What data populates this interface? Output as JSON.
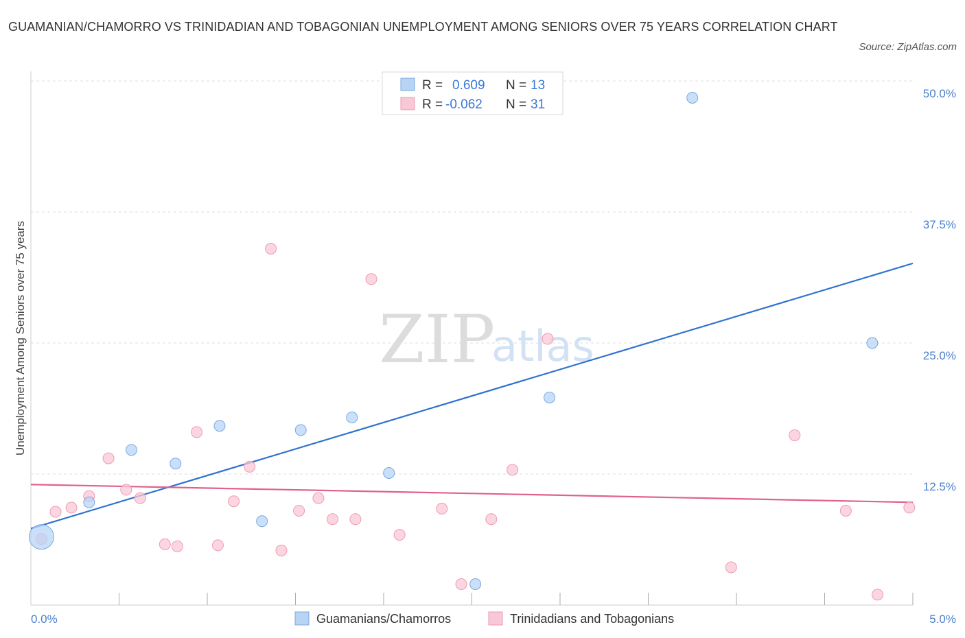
{
  "title": "GUAMANIAN/CHAMORRO VS TRINIDADIAN AND TOBAGONIAN UNEMPLOYMENT AMONG SENIORS OVER 75 YEARS CORRELATION CHART",
  "source": "Source: ZipAtlas.com",
  "watermark": {
    "zip": "ZIP",
    "atlas": "atlas"
  },
  "colors": {
    "blue_fill": "#b8d4f5",
    "blue_stroke": "#7aa8e0",
    "blue_line": "#2f72d0",
    "pink_fill": "#f9c8d6",
    "pink_stroke": "#ee9ab2",
    "pink_line": "#e0608e",
    "axis_text": "#4a7fcf",
    "grid": "#dddddd"
  },
  "stats": {
    "r_label": "R =",
    "n_label": "N =",
    "rows": [
      {
        "series": "Guamanians/Chamorros",
        "r": "0.609",
        "n": "13"
      },
      {
        "series": "Trinidadians and Tobagonians",
        "r": "-0.062",
        "n": "31"
      }
    ]
  },
  "chart_data": {
    "type": "scatter",
    "title": "GUAMANIAN/CHAMORRO VS TRINIDADIAN AND TOBAGONIAN UNEMPLOYMENT AMONG SENIORS OVER 75 YEARS CORRELATION CHART",
    "xlabel": "",
    "ylabel": "Unemployment Among Seniors over 75 years",
    "xlim": [
      0,
      5
    ],
    "ylim": [
      0,
      50
    ],
    "x_tick_labels": [
      {
        "value": 0,
        "label": "0.0%"
      },
      {
        "value": 5,
        "label": "5.0%"
      }
    ],
    "y_tick_labels": [
      {
        "value": 12.5,
        "label": "12.5%"
      },
      {
        "value": 25,
        "label": "25.0%"
      },
      {
        "value": 37.5,
        "label": "37.5%"
      },
      {
        "value": 50,
        "label": "50.0%"
      }
    ],
    "x_minor_ticks": [
      0.5,
      1.0,
      1.5,
      2.0,
      2.5,
      3.0,
      3.5,
      4.0,
      4.5,
      5.0
    ],
    "grid": true,
    "legend_position": "bottom-center",
    "series": [
      {
        "name": "Guamanians/Chamorros",
        "color": "blue",
        "points": [
          {
            "x": 0.06,
            "y": 6.5,
            "big": true
          },
          {
            "x": 0.33,
            "y": 9.8
          },
          {
            "x": 0.57,
            "y": 14.8
          },
          {
            "x": 0.82,
            "y": 13.5
          },
          {
            "x": 1.07,
            "y": 17.1
          },
          {
            "x": 1.31,
            "y": 8.0
          },
          {
            "x": 1.53,
            "y": 16.7
          },
          {
            "x": 1.82,
            "y": 17.9
          },
          {
            "x": 2.03,
            "y": 12.6
          },
          {
            "x": 2.52,
            "y": 2.0
          },
          {
            "x": 2.94,
            "y": 19.8
          },
          {
            "x": 3.75,
            "y": 48.4
          },
          {
            "x": 4.77,
            "y": 25.0
          }
        ],
        "trendline": {
          "x1": 0.0,
          "y1": 7.3,
          "x2": 5.0,
          "y2": 32.6
        }
      },
      {
        "name": "Trinidadians and Tobagonians",
        "color": "pink",
        "points": [
          {
            "x": 0.06,
            "y": 6.3
          },
          {
            "x": 0.14,
            "y": 8.9
          },
          {
            "x": 0.23,
            "y": 9.3
          },
          {
            "x": 0.33,
            "y": 10.4
          },
          {
            "x": 0.44,
            "y": 14.0
          },
          {
            "x": 0.54,
            "y": 11.0
          },
          {
            "x": 0.62,
            "y": 10.2
          },
          {
            "x": 0.76,
            "y": 5.8
          },
          {
            "x": 0.83,
            "y": 5.6
          },
          {
            "x": 0.94,
            "y": 16.5
          },
          {
            "x": 1.06,
            "y": 5.7
          },
          {
            "x": 1.15,
            "y": 9.9
          },
          {
            "x": 1.24,
            "y": 13.2
          },
          {
            "x": 1.36,
            "y": 34.0
          },
          {
            "x": 1.42,
            "y": 5.2
          },
          {
            "x": 1.52,
            "y": 9.0
          },
          {
            "x": 1.63,
            "y": 10.2
          },
          {
            "x": 1.71,
            "y": 8.2
          },
          {
            "x": 1.84,
            "y": 8.2
          },
          {
            "x": 1.93,
            "y": 31.1
          },
          {
            "x": 2.09,
            "y": 6.7
          },
          {
            "x": 2.33,
            "y": 9.2
          },
          {
            "x": 2.44,
            "y": 2.0
          },
          {
            "x": 2.61,
            "y": 8.2
          },
          {
            "x": 2.73,
            "y": 12.9
          },
          {
            "x": 2.93,
            "y": 25.4
          },
          {
            "x": 3.97,
            "y": 3.6
          },
          {
            "x": 4.33,
            "y": 16.2
          },
          {
            "x": 4.62,
            "y": 9.0
          },
          {
            "x": 4.8,
            "y": 1.0
          },
          {
            "x": 4.98,
            "y": 9.3
          }
        ],
        "trendline": {
          "x1": 0.0,
          "y1": 11.5,
          "x2": 5.0,
          "y2": 9.8
        }
      }
    ]
  }
}
